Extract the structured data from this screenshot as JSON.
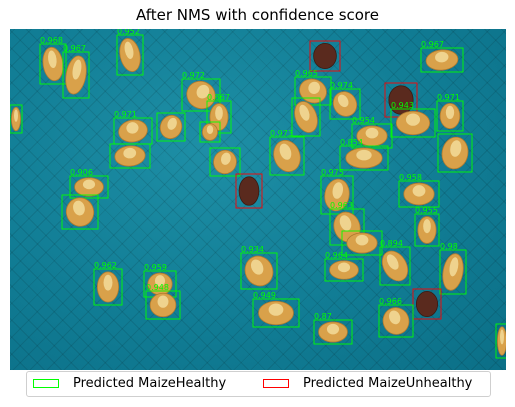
{
  "title": "After NMS with confidence score",
  "colors": {
    "healthy": "#00ff00",
    "unhealthy": "#ff0000",
    "background": "#117d95"
  },
  "legend": {
    "healthy_label": "Predicted MaizeHealthy",
    "unhealthy_label": "Predicted MaizeUnhealthy"
  },
  "detections_scores": [
    "0.968",
    "0.967",
    "0.952",
    "0.967",
    "0.972",
    "0.966",
    "0.965",
    "0.974",
    "0.867",
    "0.971",
    "0.943",
    "0.971",
    "0.854",
    "0.954",
    "0.973",
    "0.960",
    "0.975",
    "0.958",
    "0.906",
    "0.963",
    "0.955",
    "0.894",
    "0.98",
    "0.934",
    "0.959",
    "0.949",
    "0.87",
    "0.966",
    "0.964",
    "0.962",
    "0.948"
  ]
}
